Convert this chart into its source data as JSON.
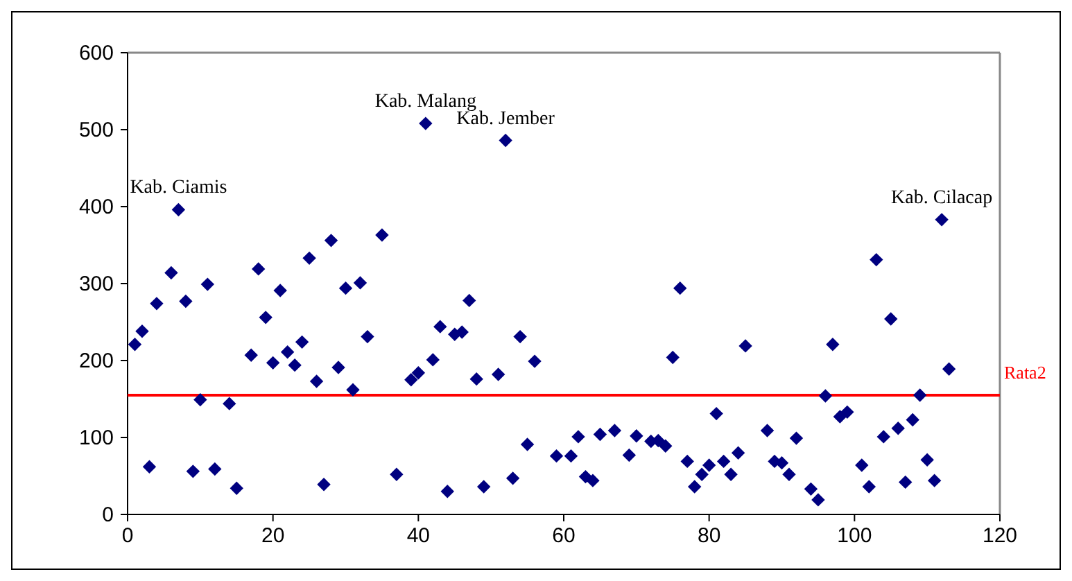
{
  "chart_data": {
    "type": "scatter",
    "marker": "diamond",
    "grid": false,
    "xlim": [
      0,
      120
    ],
    "xticks": [
      0,
      20,
      40,
      60,
      80,
      100,
      120
    ],
    "ylim": [
      0,
      600
    ],
    "yticks": [
      0,
      100,
      200,
      300,
      400,
      500,
      600
    ],
    "series": [
      {
        "color": "#000080",
        "x": [
          1,
          2,
          3,
          4,
          6,
          7,
          8,
          9,
          10,
          11,
          12,
          14,
          15,
          17,
          18,
          19,
          20,
          21,
          22,
          23,
          24,
          25,
          26,
          27,
          28,
          29,
          30,
          31,
          32,
          33,
          35,
          37,
          39,
          40,
          41,
          42,
          43,
          44,
          45,
          46,
          47,
          48,
          49,
          51,
          52,
          53,
          54,
          55,
          56,
          59,
          61,
          62,
          63,
          64,
          65,
          67,
          69,
          70,
          72,
          73,
          74,
          75,
          76,
          77,
          78,
          79,
          80,
          81,
          82,
          83,
          84,
          85,
          88,
          89,
          90,
          91,
          92,
          94,
          95,
          96,
          97,
          98,
          99,
          101,
          102,
          103,
          104,
          105,
          106,
          107,
          108,
          109,
          110,
          111,
          112,
          113
        ],
        "values": [
          221,
          238,
          62,
          274,
          314,
          396,
          277,
          56,
          149,
          299,
          59,
          144,
          34,
          207,
          319,
          256,
          197,
          291,
          211,
          194,
          224,
          333,
          173,
          39,
          356,
          191,
          294,
          162,
          301,
          231,
          363,
          52,
          175,
          184,
          508,
          201,
          244,
          30,
          234,
          237,
          278,
          176,
          36,
          182,
          486,
          47,
          231,
          91,
          199,
          76,
          76,
          101,
          49,
          44,
          104,
          109,
          77,
          102,
          95,
          96,
          89,
          204,
          294,
          69,
          36,
          52,
          64,
          131,
          69,
          52,
          80,
          219,
          109,
          69,
          67,
          52,
          99,
          33,
          19,
          154,
          221,
          127,
          133,
          64,
          36,
          331,
          101,
          254,
          112,
          42,
          123,
          155,
          71,
          44,
          383,
          189
        ]
      }
    ],
    "ref_lines": [
      {
        "axis": "y",
        "value": 155,
        "label": "Rata2",
        "color": "#ff0000"
      }
    ],
    "annotations": [
      {
        "text": "Kab. Ciamis",
        "x": 7,
        "y": 396
      },
      {
        "text": "Kab. Malang",
        "x": 41,
        "y": 508
      },
      {
        "text": "Kab. Jember",
        "x": 52,
        "y": 486
      },
      {
        "text": "Kab. Cilacap",
        "x": 112,
        "y": 383
      }
    ]
  }
}
